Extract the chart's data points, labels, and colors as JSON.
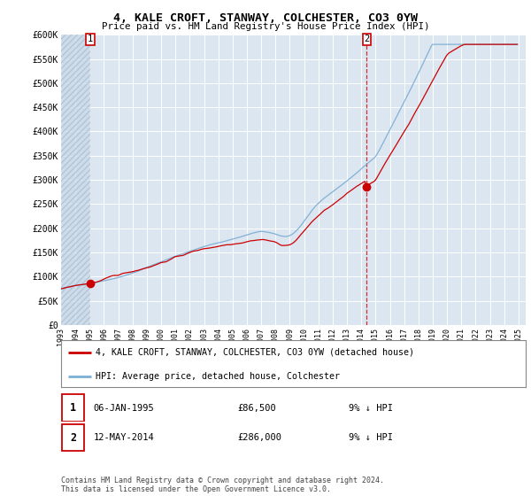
{
  "title": "4, KALE CROFT, STANWAY, COLCHESTER, CO3 0YW",
  "subtitle": "Price paid vs. HM Land Registry's House Price Index (HPI)",
  "ylim": [
    0,
    600000
  ],
  "yticks": [
    0,
    50000,
    100000,
    150000,
    200000,
    250000,
    300000,
    350000,
    400000,
    450000,
    500000,
    550000,
    600000
  ],
  "ytick_labels": [
    "£0",
    "£50K",
    "£100K",
    "£150K",
    "£200K",
    "£250K",
    "£300K",
    "£350K",
    "£400K",
    "£450K",
    "£500K",
    "£550K",
    "£600K"
  ],
  "background_color": "#ffffff",
  "plot_bg_color": "#dce6f1",
  "grid_color": "#ffffff",
  "hpi_color": "#7bafd4",
  "price_color": "#cc0000",
  "point1_year": 1995.04,
  "point1_price": 86500,
  "point1_label": "1",
  "point1_date": "06-JAN-1995",
  "point1_amount": "£86,500",
  "point1_hpi": "9% ↓ HPI",
  "point2_year": 2014.37,
  "point2_price": 286000,
  "point2_label": "2",
  "point2_date": "12-MAY-2014",
  "point2_amount": "£286,000",
  "point2_hpi": "9% ↓ HPI",
  "legend_label1": "4, KALE CROFT, STANWAY, COLCHESTER, CO3 0YW (detached house)",
  "legend_label2": "HPI: Average price, detached house, Colchester",
  "footer": "Contains HM Land Registry data © Crown copyright and database right 2024.\nThis data is licensed under the Open Government Licence v3.0.",
  "xmin": 1993.0,
  "xmax": 2025.5
}
